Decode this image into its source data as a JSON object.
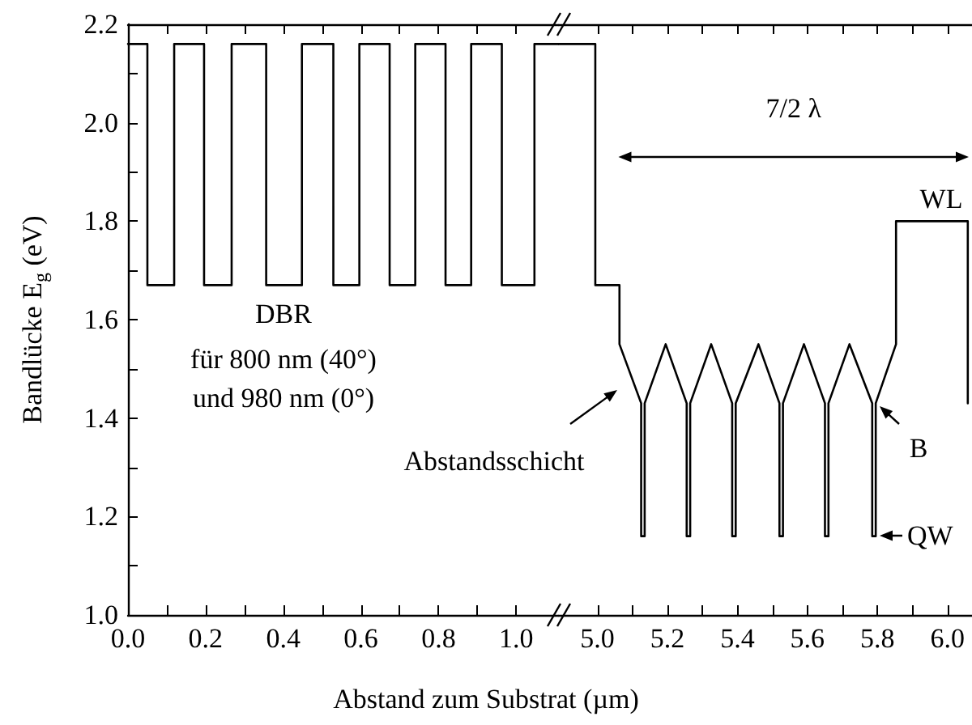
{
  "chart_data": [
    {
      "type": "line",
      "ylabel": "Bandlücke E$_{g}$ (eV)",
      "color": "#000000",
      "marker": "none",
      "line_style": "solid",
      "x": [
        0,
        0.05,
        0.05,
        0.119,
        0.119,
        0.196,
        0.196,
        0.267,
        0.267,
        0.356,
        0.356,
        0.448,
        0.448,
        0.529,
        0.529,
        0.596,
        0.596,
        0.674,
        0.674,
        0.74,
        0.74,
        0.818,
        0.818,
        0.884,
        0.884,
        0.963,
        0.963,
        1.047,
        1.047,
        1.11
      ],
      "values": [
        2.16,
        2.16,
        1.67,
        1.67,
        2.16,
        2.16,
        1.67,
        1.67,
        2.16,
        2.16,
        1.67,
        1.67,
        2.16,
        2.16,
        1.67,
        1.67,
        2.16,
        2.16,
        1.67,
        1.67,
        2.16,
        2.16,
        1.67,
        1.67,
        2.16,
        2.16,
        1.67,
        1.67,
        2.16,
        2.16
      ],
      "xlim": [
        0,
        1.11
      ],
      "xticks": [
        {
          "value": 0,
          "label": "0.0"
        },
        {
          "value": 0.1,
          "label": null
        },
        0.2,
        {
          "value": 0.3,
          "label": null
        },
        0.4,
        {
          "value": 0.5,
          "label": null
        },
        0.6,
        {
          "value": 0.7,
          "label": null
        },
        0.8,
        {
          "value": 0.9,
          "label": null
        },
        {
          "value": 1,
          "label": "1.0"
        }
      ],
      "ylim": [
        1.0,
        2.2
      ],
      "yticks": [
        {
          "value": 1,
          "label": "1.0"
        },
        {
          "value": 1.1,
          "label": null
        },
        1.2,
        {
          "value": 1.3,
          "label": null
        },
        1.4,
        {
          "value": 1.5,
          "label": null
        },
        1.6,
        {
          "value": 1.7,
          "label": null
        },
        1.8,
        {
          "value": 1.9,
          "label": null
        },
        {
          "value": 2,
          "label": "2.0"
        },
        {
          "value": 2.1,
          "label": null
        },
        2.2
      ],
      "annotations": [
        "DBR",
        "für 800 nm (40°)",
        "und 980 nm (0°)"
      ]
    },
    {
      "type": "line",
      "xlabel": "Abstand zum Substrat (µm)",
      "color": "#000000",
      "marker": "none",
      "line_style": "solid",
      "tick_labels": "x",
      "x": [
        4.89,
        4.994,
        4.994,
        5.063,
        5.063,
        5.125,
        5.125,
        5.135,
        5.135,
        5.195,
        5.255,
        5.255,
        5.265,
        5.265,
        5.325,
        5.385,
        5.385,
        5.395,
        5.395,
        5.46,
        5.52,
        5.52,
        5.53,
        5.53,
        5.59,
        5.65,
        5.65,
        5.66,
        5.66,
        5.72,
        5.785,
        5.785,
        5.795,
        5.795,
        5.853,
        5.853,
        6.058,
        6.058
      ],
      "values": [
        2.16,
        2.16,
        1.67,
        1.67,
        1.55,
        1.43,
        1.16,
        1.16,
        1.43,
        1.55,
        1.43,
        1.16,
        1.16,
        1.43,
        1.55,
        1.43,
        1.16,
        1.16,
        1.43,
        1.55,
        1.43,
        1.16,
        1.16,
        1.43,
        1.55,
        1.43,
        1.16,
        1.16,
        1.43,
        1.55,
        1.43,
        1.16,
        1.16,
        1.43,
        1.55,
        1.8,
        1.8,
        1.43
      ],
      "xlim": [
        4.89,
        6.07
      ],
      "xticks": [
        {
          "value": 5,
          "label": "5.0"
        },
        {
          "value": 5.1,
          "label": null
        },
        5.2,
        {
          "value": 5.3,
          "label": null
        },
        5.4,
        {
          "value": 5.5,
          "label": null
        },
        5.6,
        {
          "value": 5.7,
          "label": null
        },
        5.8,
        {
          "value": 5.9,
          "label": null
        },
        {
          "value": 6,
          "label": "6.0"
        }
      ],
      "ylim": [
        1.0,
        2.2
      ],
      "yticks": [
        1,
        1.2,
        1.4,
        1.6,
        1.8,
        2,
        2.2
      ],
      "annotations": [
        "7/2 λ",
        "Abstandsschicht",
        "WL",
        "B",
        "QW"
      ]
    }
  ]
}
